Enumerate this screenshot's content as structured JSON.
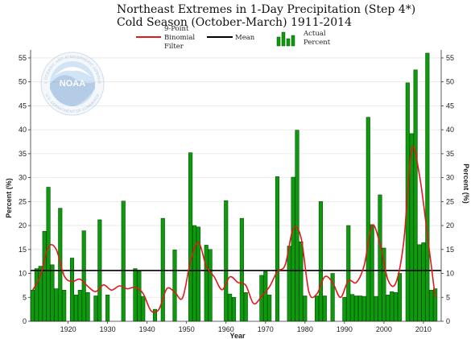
{
  "header": {
    "title_line1": "Northeast Extremes in 1-Day Precipitation (Step 4*)",
    "title_line2": "Cold Season (October-March) 1911-2014"
  },
  "legend": {
    "filter_line1": "9-Point",
    "filter_line2": "Binomial",
    "filter_line3": "Filter",
    "mean_label": "Mean",
    "actual_line1": "Actual",
    "actual_line2": "Percent"
  },
  "logo": {
    "text": "NOAA",
    "ring_top": "NATIONAL OCEANIC AND ATMOSPHERIC ADMINISTRATION",
    "ring_bottom": "U.S. DEPARTMENT OF COMMERCE"
  },
  "colors": {
    "bar_fill": "#0d9b0d",
    "bar_stroke": "#064d06",
    "filter_line": "#e0191c",
    "mean_line": "#000000",
    "grid": "#e6e6e6"
  },
  "chart_data": {
    "type": "bar",
    "title": "Northeast Extremes in 1-Day Precipitation (Step 4*) Cold Season (October-March) 1911-2014",
    "xlabel": "Year",
    "ylabel_left": "Percent (%)",
    "ylabel_right": "Percent (%)",
    "xlim": [
      1911,
      2014
    ],
    "ylim": [
      0,
      56
    ],
    "x_ticks": [
      1920,
      1930,
      1940,
      1950,
      1960,
      1970,
      1980,
      1990,
      2000,
      2010
    ],
    "y_ticks": [
      0,
      5,
      10,
      15,
      20,
      25,
      30,
      35,
      40,
      45,
      50,
      55
    ],
    "grid": true,
    "mean": 10.6,
    "series": [
      {
        "name": "Actual Percent",
        "kind": "bar",
        "x": [
          1911,
          1912,
          1913,
          1914,
          1915,
          1916,
          1917,
          1918,
          1919,
          1920,
          1921,
          1922,
          1923,
          1924,
          1925,
          1926,
          1927,
          1928,
          1929,
          1930,
          1931,
          1932,
          1933,
          1934,
          1935,
          1936,
          1937,
          1938,
          1939,
          1940,
          1941,
          1942,
          1943,
          1944,
          1945,
          1946,
          1947,
          1948,
          1949,
          1950,
          1951,
          1952,
          1953,
          1954,
          1955,
          1956,
          1957,
          1958,
          1959,
          1960,
          1961,
          1962,
          1963,
          1964,
          1965,
          1966,
          1967,
          1968,
          1969,
          1970,
          1971,
          1972,
          1973,
          1974,
          1975,
          1976,
          1977,
          1978,
          1979,
          1980,
          1981,
          1982,
          1983,
          1984,
          1985,
          1986,
          1987,
          1988,
          1989,
          1990,
          1991,
          1992,
          1993,
          1994,
          1995,
          1996,
          1997,
          1998,
          1999,
          2000,
          2001,
          2002,
          2003,
          2004,
          2005,
          2006,
          2007,
          2008,
          2009,
          2010,
          2011,
          2012,
          2013,
          2014
        ],
        "values": [
          6.5,
          11.0,
          11.5,
          18.8,
          28.0,
          11.8,
          6.8,
          23.6,
          6.5,
          0,
          13.2,
          5.5,
          6.5,
          18.9,
          6.0,
          0,
          5.3,
          21.2,
          0,
          5.5,
          0,
          0,
          0,
          25.1,
          0,
          0,
          11.0,
          10.4,
          5.2,
          0,
          0,
          2.5,
          0,
          21.5,
          0,
          0,
          14.9,
          0,
          0,
          0,
          35.2,
          20.0,
          19.7,
          0,
          15.9,
          15.0,
          0,
          0,
          0,
          25.2,
          5.7,
          5.0,
          0,
          21.5,
          6.0,
          0,
          0,
          0,
          9.6,
          10.4,
          5.5,
          0,
          30.2,
          0,
          0,
          15.7,
          30.1,
          39.9,
          16.6,
          5.3,
          0,
          0,
          5.3,
          25.0,
          5.3,
          0,
          10.0,
          0,
          0,
          5.0,
          20.0,
          5.6,
          5.3,
          5.3,
          5.2,
          42.6,
          20.2,
          5.2,
          26.4,
          15.3,
          5.5,
          6.2,
          6.0,
          10.0,
          0,
          49.8,
          39.2,
          52.5,
          16.0,
          16.4,
          56.0,
          6.5,
          6.8,
          0
        ]
      },
      {
        "name": "9-Point Binomial Filter",
        "kind": "line",
        "x": [
          1911,
          1913,
          1915,
          1917,
          1919,
          1921,
          1923,
          1925,
          1927,
          1929,
          1931,
          1933,
          1935,
          1937,
          1939,
          1941,
          1943,
          1945,
          1947,
          1949,
          1951,
          1953,
          1955,
          1957,
          1959,
          1961,
          1963,
          1965,
          1967,
          1969,
          1971,
          1973,
          1975,
          1977,
          1979,
          1981,
          1983,
          1985,
          1987,
          1989,
          1991,
          1993,
          1995,
          1997,
          1999,
          2001,
          2003,
          2005,
          2007,
          2009,
          2011,
          2013
        ],
        "values": [
          6.5,
          9.5,
          15.5,
          15.0,
          9.5,
          8.3,
          8.8,
          7.3,
          6.2,
          7.6,
          6.5,
          7.4,
          6.8,
          7.1,
          5.8,
          2.2,
          2.5,
          6.8,
          6.1,
          4.9,
          12.5,
          16.5,
          11.5,
          9.3,
          6.6,
          9.3,
          8.1,
          7.5,
          3.7,
          5.2,
          7.2,
          10.4,
          11.8,
          19.3,
          17.5,
          6.1,
          5.7,
          9.3,
          8.1,
          5.0,
          8.5,
          8.1,
          11.7,
          20.0,
          16.2,
          8.7,
          8.0,
          16.5,
          35.9,
          30.5,
          18.1,
          5.0
        ]
      }
    ]
  }
}
